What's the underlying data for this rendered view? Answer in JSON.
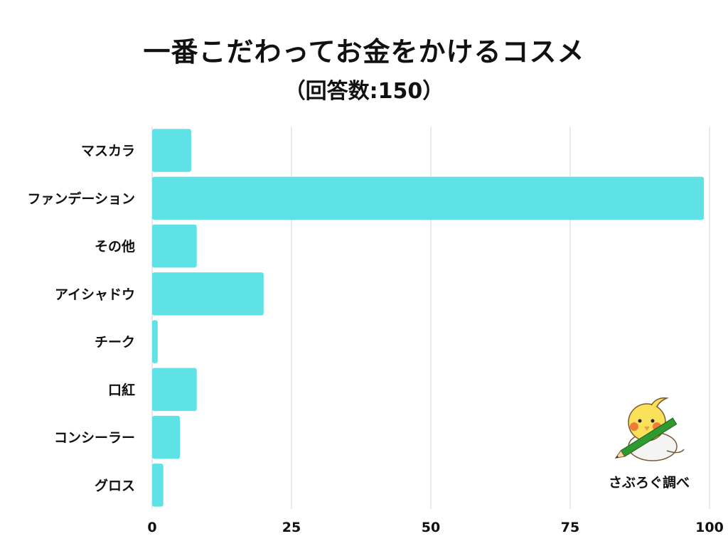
{
  "chart_data": {
    "type": "bar",
    "orientation": "horizontal",
    "title": "一番こだわってお金をかけるコスメ",
    "subtitle": "（回答数:150）",
    "categories": [
      "マスカラ",
      "ファンデーション",
      "その他",
      "アイシャドウ",
      "チーク",
      "口紅",
      "コンシーラー",
      "グロス"
    ],
    "values": [
      7,
      99,
      8,
      20,
      1,
      8,
      5,
      2
    ],
    "xlim": [
      0,
      100
    ],
    "xticks": [
      "0",
      "25",
      "50",
      "75",
      "100"
    ],
    "grid": true,
    "legend": "none",
    "bar_color": "#5ee2e6"
  },
  "credit": "さぶろぐ調べ",
  "mascot_icon": "bird-holding-pencil-icon"
}
